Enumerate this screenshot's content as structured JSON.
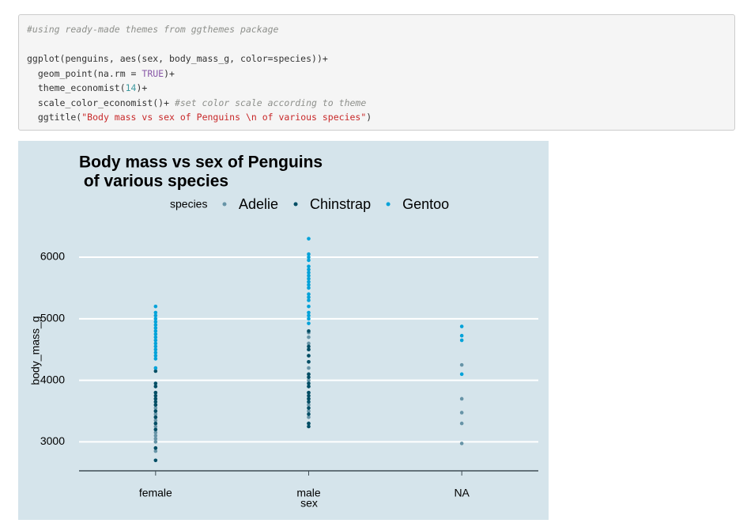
{
  "code": {
    "lines": [
      [
        "#using ready-made themes from ggthemes package"
      ],
      [
        "ggplot(penguins, aes(sex, body_mass_g, color=species))+"
      ],
      [
        "  geom_point(na.rm = ",
        "TRUE",
        ")+"
      ],
      [
        "  theme_economist(",
        "14",
        ")+"
      ],
      [
        "  scale_color_economist()+ ",
        "#set color scale according to theme"
      ],
      [
        "  ggtitle(",
        "\"Body mass vs sex of Penguins \\n of various species\"",
        ")"
      ]
    ]
  },
  "chart_data": {
    "type": "scatter",
    "title": [
      "Body mass vs sex of Penguins",
      " of various species"
    ],
    "legend_title": "species",
    "x_label": "sex",
    "y_label": "body_mass_g",
    "categories": [
      "female",
      "male",
      "NA"
    ],
    "ylim": [
      2530,
      6450
    ],
    "yticks": [
      3000,
      4000,
      5000,
      6000
    ],
    "grid": true,
    "series": [
      {
        "name": "Adelie",
        "color": "#6794a7",
        "x": [
          "female",
          "female",
          "female",
          "female",
          "female",
          "female",
          "female",
          "female",
          "female",
          "female",
          "female",
          "female",
          "female",
          "female",
          "female",
          "female",
          "female",
          "female",
          "male",
          "male",
          "male",
          "male",
          "male",
          "male",
          "male",
          "male",
          "male",
          "male",
          "male",
          "male",
          "male",
          "male",
          "male",
          "male",
          "NA",
          "NA",
          "NA",
          "NA",
          "NA"
        ],
        "values": [
          2850,
          2900,
          3000,
          3050,
          3100,
          3150,
          3200,
          3250,
          3300,
          3350,
          3400,
          3450,
          3500,
          3550,
          3600,
          3700,
          3800,
          3900,
          3300,
          3400,
          3500,
          3600,
          3700,
          3800,
          3900,
          4000,
          4100,
          4200,
          4300,
          4400,
          4500,
          4600,
          4700,
          4775,
          2975,
          3300,
          3475,
          3700,
          4250
        ]
      },
      {
        "name": "Chinstrap",
        "color": "#014d64",
        "x": [
          "female",
          "female",
          "female",
          "female",
          "female",
          "female",
          "female",
          "female",
          "female",
          "female",
          "female",
          "female",
          "female",
          "female",
          "male",
          "male",
          "male",
          "male",
          "male",
          "male",
          "male",
          "male",
          "male",
          "male",
          "male",
          "male",
          "male",
          "male",
          "male",
          "male",
          "male"
        ],
        "values": [
          2700,
          2900,
          3200,
          3300,
          3400,
          3500,
          3600,
          3650,
          3700,
          3750,
          3800,
          3900,
          3950,
          4150,
          3250,
          3300,
          3450,
          3550,
          3650,
          3700,
          3750,
          3800,
          3900,
          3950,
          4050,
          4100,
          4300,
          4400,
          4500,
          4550,
          4800
        ]
      },
      {
        "name": "Gentoo",
        "color": "#01a2d9",
        "x": [
          "female",
          "female",
          "female",
          "female",
          "female",
          "female",
          "female",
          "female",
          "female",
          "female",
          "female",
          "female",
          "female",
          "female",
          "female",
          "female",
          "female",
          "female",
          "male",
          "male",
          "male",
          "male",
          "male",
          "male",
          "male",
          "male",
          "male",
          "male",
          "male",
          "male",
          "male",
          "male",
          "male",
          "male",
          "male",
          "male",
          "male",
          "male",
          "NA",
          "NA",
          "NA",
          "NA"
        ],
        "values": [
          4200,
          4350,
          4400,
          4450,
          4500,
          4550,
          4600,
          4650,
          4700,
          4750,
          4800,
          4850,
          4900,
          4950,
          5000,
          5050,
          5100,
          5200,
          4925,
          5000,
          5050,
          5100,
          5200,
          5300,
          5350,
          5400,
          5500,
          5550,
          5600,
          5650,
          5700,
          5750,
          5800,
          5850,
          5950,
          6000,
          6050,
          6300,
          4100,
          4650,
          4725,
          4875
        ]
      }
    ]
  }
}
